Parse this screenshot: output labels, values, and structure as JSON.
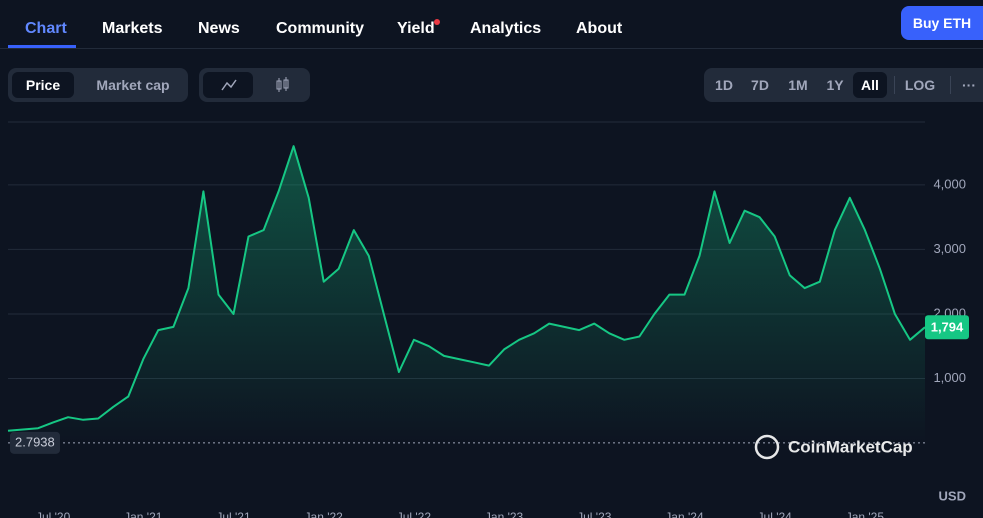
{
  "nav": {
    "tabs": [
      "Chart",
      "Markets",
      "News",
      "Community",
      "Yield",
      "Analytics",
      "About"
    ],
    "cta": "Buy ETH"
  },
  "toolbar": {
    "metric_toggle": [
      "Price",
      "Market cap"
    ],
    "ranges": [
      "1D",
      "7D",
      "1M",
      "1Y",
      "All"
    ],
    "scale_toggle": "LOG",
    "more": "···"
  },
  "chart_data": {
    "type": "line",
    "categories": [
      null,
      null,
      null,
      "Jul '20",
      null,
      null,
      null,
      null,
      null,
      "Jan '21",
      null,
      null,
      null,
      null,
      null,
      "Jul '21",
      null,
      null,
      null,
      null,
      null,
      "Jan '22",
      null,
      null,
      null,
      null,
      null,
      "Jul '22",
      null,
      null,
      null,
      null,
      null,
      "Jan '23",
      null,
      null,
      null,
      null,
      null,
      "Jul '23",
      null,
      null,
      null,
      null,
      null,
      "Jan '24",
      null,
      null,
      null,
      null,
      null,
      "Jul '24",
      null,
      null,
      null,
      null,
      null,
      "Jan '25",
      null,
      null,
      null,
      null
    ],
    "series": [
      {
        "name": "Price",
        "color": "#16c784",
        "values": [
          190,
          210,
          230,
          320,
          400,
          360,
          380,
          560,
          720,
          1300,
          1750,
          1800,
          2400,
          3900,
          2300,
          2000,
          3200,
          3300,
          3900,
          4600,
          3800,
          2500,
          2700,
          3300,
          2900,
          2000,
          1100,
          1600,
          1500,
          1350,
          1300,
          1250,
          1200,
          1450,
          1600,
          1700,
          1850,
          1800,
          1750,
          1850,
          1700,
          1600,
          1650,
          2000,
          2300,
          2300,
          2900,
          3900,
          3100,
          3600,
          3500,
          3200,
          2600,
          2400,
          2500,
          3300,
          3800,
          3300,
          2700,
          2000,
          1600,
          1794
        ]
      }
    ],
    "ylim": [
      0,
      4975
    ],
    "yticks": [
      {
        "value": 1000,
        "label": "1,000"
      },
      {
        "value": 2000,
        "label": "2,000"
      },
      {
        "value": 3000,
        "label": "3,000"
      },
      {
        "value": 4000,
        "label": "4,000"
      }
    ],
    "grid": true,
    "current_price": {
      "value": 1794,
      "label": "1,794"
    },
    "reference_line": 2.7938,
    "unit": "USD",
    "watermark": "CoinMarketCap"
  }
}
